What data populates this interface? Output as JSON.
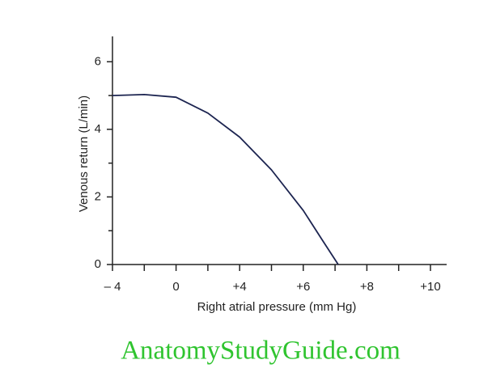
{
  "chart_data": {
    "type": "line",
    "x_label": "Right atrial pressure (mm Hg)",
    "y_label": "Venous return (L/min)",
    "x": [
      -4,
      -2,
      0,
      2,
      4,
      5,
      6,
      6.6,
      7.1
    ],
    "series": [
      {
        "color": "#1c2450",
        "values": [
          5.0,
          5.03,
          4.95,
          4.48,
          3.77,
          2.8,
          1.6,
          0.72,
          0
        ]
      }
    ],
    "xlim": [
      -4,
      10.5
    ],
    "xticks": [
      {
        "value": -4,
        "label": "– 4"
      },
      0,
      {
        "value": 4,
        "label": "+4"
      },
      {
        "value": 6,
        "label": "+6"
      },
      {
        "value": 8,
        "label": "+8"
      },
      {
        "value": 10,
        "label": "+10"
      }
    ],
    "ylim": [
      0,
      6.75
    ],
    "yticks": [
      0,
      2,
      4,
      6
    ],
    "watermark": "AnatomyStudyGuide.com"
  }
}
